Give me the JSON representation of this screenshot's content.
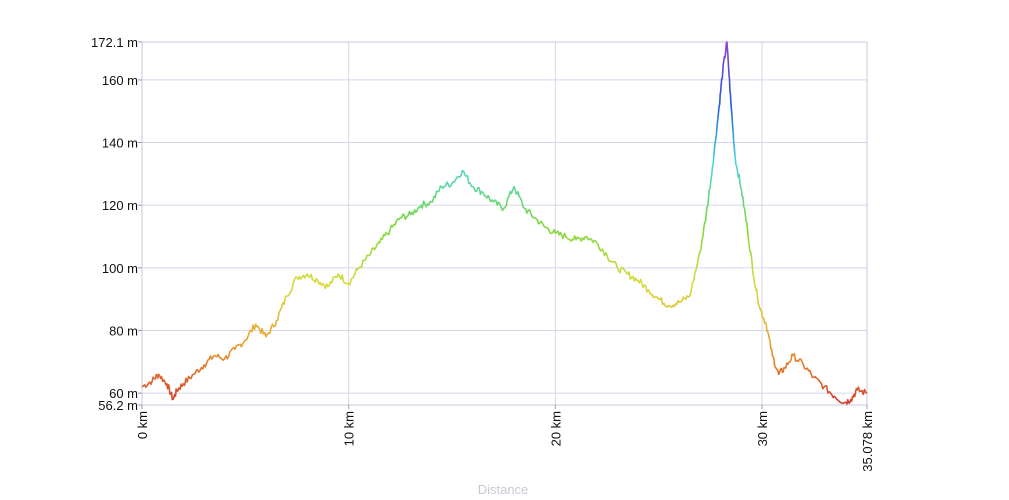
{
  "chart_data": {
    "type": "line",
    "title": "",
    "xlabel": "Distance",
    "ylabel": "",
    "xlim": [
      0,
      35.078
    ],
    "ylim": [
      56.2,
      172.1
    ],
    "grid": true,
    "x_ticks": [
      {
        "value": 0,
        "label": "0 km"
      },
      {
        "value": 10,
        "label": "10 km"
      },
      {
        "value": 20,
        "label": "20 km"
      },
      {
        "value": 30,
        "label": "30 km"
      },
      {
        "value": 35.078,
        "label": "35.078 km"
      }
    ],
    "y_ticks": [
      {
        "value": 56.2,
        "label": "56.2 m"
      },
      {
        "value": 60,
        "label": "60 m"
      },
      {
        "value": 80,
        "label": "80 m"
      },
      {
        "value": 100,
        "label": "100 m"
      },
      {
        "value": 120,
        "label": "120 m"
      },
      {
        "value": 140,
        "label": "140 m"
      },
      {
        "value": 160,
        "label": "160 m"
      },
      {
        "value": 172.1,
        "label": "172.1 m"
      }
    ],
    "color_scale": [
      "#d43a2a",
      "#e8a030",
      "#d8dc3c",
      "#7ad83e",
      "#4cd6dc",
      "#1e5ad8",
      "#9040d8"
    ],
    "series": [
      {
        "x": [
          0,
          0.5,
          0.8,
          1.2,
          1.5,
          1.7,
          2.0,
          2.5,
          3.0,
          3.5,
          4.0,
          4.5,
          5.0,
          5.5,
          6.0,
          6.5,
          7.0,
          7.5,
          8.0,
          8.5,
          9.0,
          9.5,
          10.0,
          10.5,
          11.0,
          11.5,
          12.0,
          12.5,
          13.0,
          13.5,
          14.0,
          14.5,
          15.0,
          15.5,
          16.0,
          16.5,
          17.0,
          17.5,
          18.0,
          18.5,
          19.0,
          19.5,
          20.0,
          20.5,
          21.0,
          21.5,
          22.0,
          22.5,
          23.0,
          23.5,
          24.0,
          24.5,
          25.0,
          25.5,
          26.0,
          26.5,
          27.0,
          27.3,
          27.6,
          27.9,
          28.1,
          28.3,
          28.5,
          28.7,
          29.0,
          29.3,
          29.6,
          29.9,
          30.2,
          30.5,
          30.8,
          31.1,
          31.5,
          32.0,
          32.5,
          33.0,
          33.5,
          34.0,
          34.3,
          34.6,
          35.078
        ],
        "y": [
          62,
          64,
          66,
          63,
          58,
          61,
          63,
          66,
          69,
          72,
          71,
          74,
          77,
          82,
          78,
          83,
          91,
          97,
          98,
          96,
          94,
          98,
          95,
          100,
          104,
          108,
          112,
          116,
          117,
          120,
          121,
          126,
          127,
          131,
          126,
          124,
          121,
          119,
          126,
          119,
          116,
          113,
          111,
          110,
          109,
          110,
          108,
          104,
          100,
          98,
          96,
          93,
          90,
          88,
          89,
          91,
          105,
          117,
          132,
          150,
          163,
          172.1,
          152,
          135,
          125,
          112,
          97,
          87,
          82,
          72,
          66,
          68,
          72,
          69,
          65,
          62,
          59,
          57,
          58,
          61,
          60
        ]
      }
    ]
  }
}
